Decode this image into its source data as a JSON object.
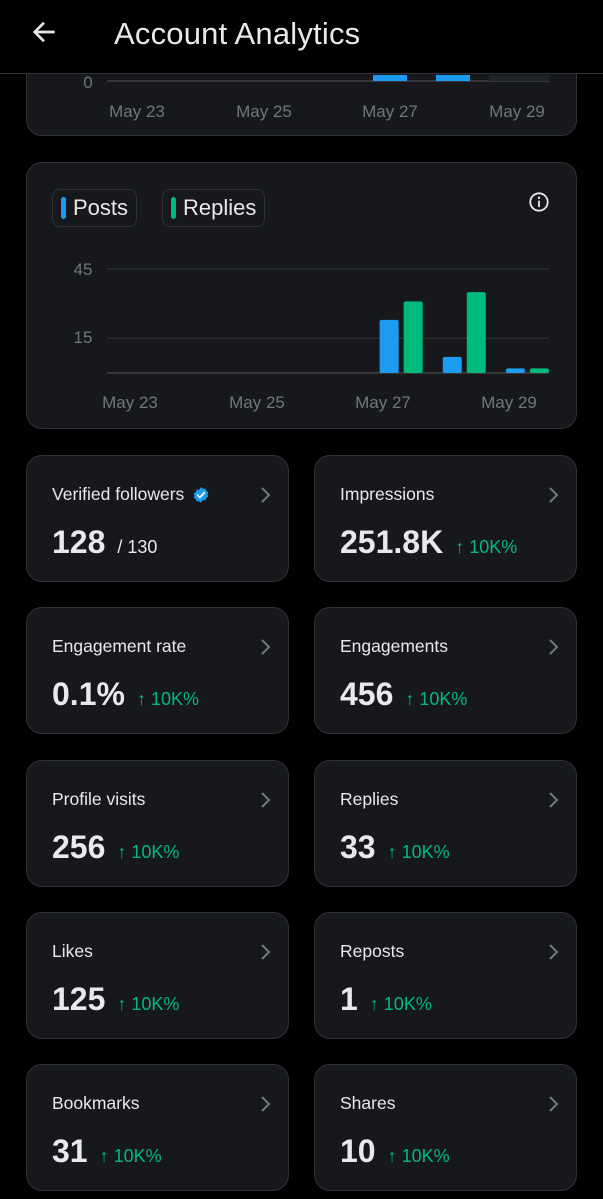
{
  "header": {
    "title": "Account Analytics"
  },
  "top_chart": {
    "y_tick": "0",
    "x_labels": [
      "May 23",
      "May 25",
      "May 27",
      "May 29"
    ]
  },
  "main_chart": {
    "legend": [
      {
        "label": "Posts",
        "color": "#1d9bf0"
      },
      {
        "label": "Replies",
        "color": "#00ba7c"
      }
    ],
    "y_ticks": [
      "45",
      "15"
    ],
    "x_labels": [
      "May 23",
      "May 25",
      "May 27",
      "May 29"
    ]
  },
  "chart_data": {
    "type": "bar",
    "categories": [
      "May 23",
      "May 24",
      "May 25",
      "May 26",
      "May 27",
      "May 28",
      "May 29"
    ],
    "series": [
      {
        "name": "Posts",
        "values": [
          0,
          0,
          0,
          0,
          23,
          7,
          2
        ]
      },
      {
        "name": "Replies",
        "values": [
          0,
          0,
          0,
          0,
          31,
          35,
          2
        ]
      }
    ],
    "yticks": [
      15,
      45
    ],
    "ylim": [
      0,
      50
    ],
    "legend": "top-left",
    "grid": true
  },
  "metrics": [
    {
      "label": "Verified followers",
      "value": "128",
      "sub": "/ 130",
      "verified": true
    },
    {
      "label": "Impressions",
      "value": "251.8K",
      "change": "↑ 10K%"
    },
    {
      "label": "Engagement rate",
      "value": "0.1%",
      "change": "↑ 10K%"
    },
    {
      "label": "Engagements",
      "value": "456",
      "change": "↑ 10K%"
    },
    {
      "label": "Profile visits",
      "value": "256",
      "change": "↑ 10K%"
    },
    {
      "label": "Replies",
      "value": "33",
      "change": "↑ 10K%"
    },
    {
      "label": "Likes",
      "value": "125",
      "change": "↑ 10K%"
    },
    {
      "label": "Reposts",
      "value": "1",
      "change": "↑ 10K%"
    },
    {
      "label": "Bookmarks",
      "value": "31",
      "change": "↑ 10K%"
    },
    {
      "label": "Shares",
      "value": "10",
      "change": "↑ 10K%"
    }
  ],
  "colors": {
    "posts": "#1d9bf0",
    "replies": "#00ba7c",
    "positive": "#00ba7c",
    "card": "#16181c",
    "border": "#2f3336"
  },
  "icons": {
    "back": "arrow-left-icon",
    "info": "info-icon",
    "chevron": "chevron-right-icon",
    "verified": "verified-badge-icon"
  }
}
